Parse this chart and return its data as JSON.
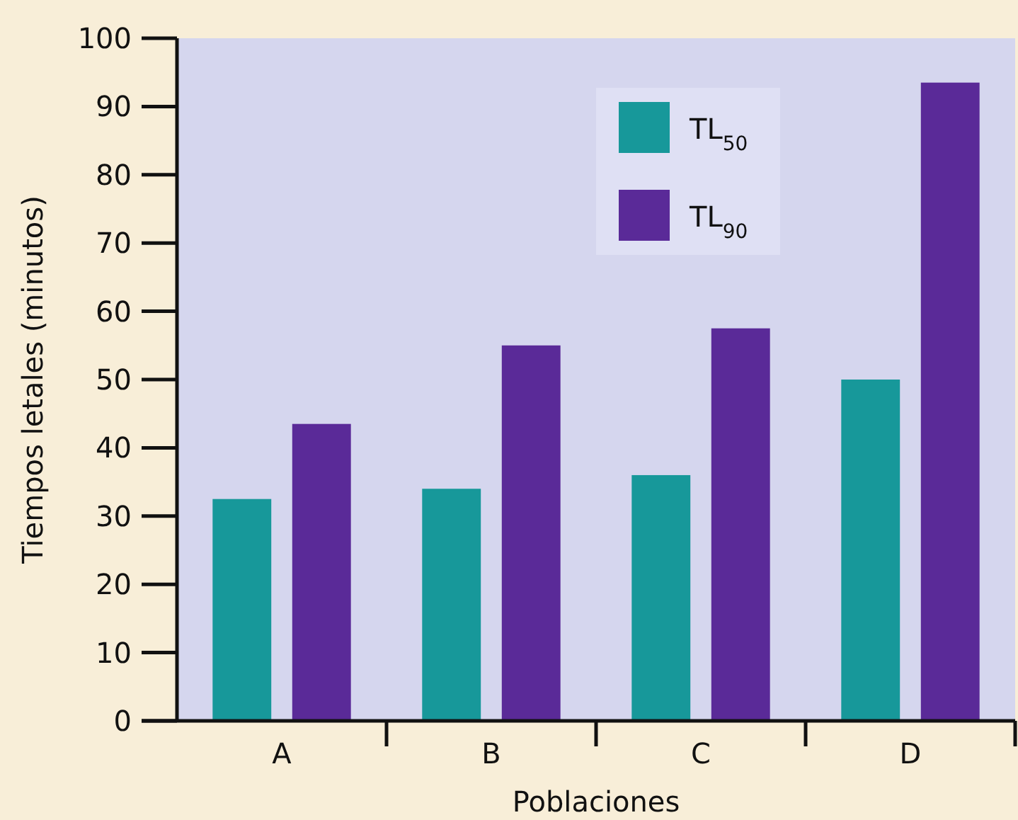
{
  "chart_data": {
    "type": "bar",
    "xlabel": "Poblaciones",
    "ylabel": "Tiempos letales (minutos)",
    "categories": [
      "A",
      "B",
      "C",
      "D"
    ],
    "series": [
      {
        "name": "TL$_{50}$",
        "color": "#17989a",
        "values": [
          32.5,
          34,
          36,
          50
        ]
      },
      {
        "name": "TL$_{90}$",
        "color": "#5a2a98",
        "values": [
          43.5,
          55,
          57.5,
          93.5
        ]
      }
    ],
    "ylim": [
      0,
      100
    ],
    "yticks": [
      0,
      10,
      20,
      30,
      40,
      50,
      60,
      70,
      80,
      90,
      100
    ],
    "grid": false,
    "legend": "top right"
  }
}
